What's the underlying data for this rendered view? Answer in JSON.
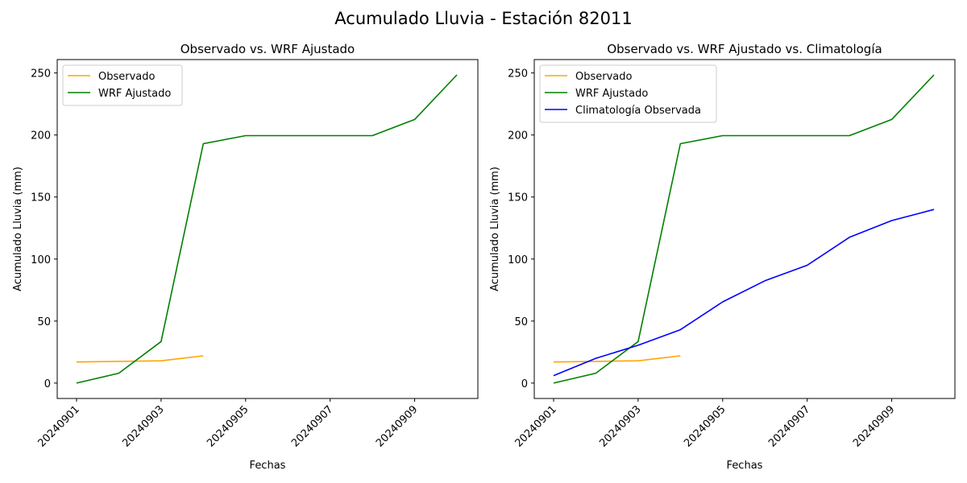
{
  "figure": {
    "suptitle": "Acumulado Lluvia - Estación 82011"
  },
  "chart_data": [
    {
      "type": "line",
      "title": "Observado vs. WRF Ajustado",
      "xlabel": "Fechas",
      "ylabel": "Acumulado Lluvia (mm)",
      "x": [
        "20240901",
        "20240902",
        "20240903",
        "20240904",
        "20240905",
        "20240906",
        "20240907",
        "20240908",
        "20240909",
        "20240910"
      ],
      "xticks": [
        "20240901",
        "20240903",
        "20240905",
        "20240907",
        "20240909"
      ],
      "yticks": [
        0,
        50,
        100,
        150,
        200,
        250
      ],
      "ylim": [
        -12.4,
        260.8
      ],
      "grid": false,
      "legend_position": "upper left",
      "series": [
        {
          "name": "Observado",
          "color": "#ffa500",
          "values": [
            17.0,
            17.5,
            18.0,
            22.0,
            null,
            null,
            null,
            null,
            null,
            null
          ]
        },
        {
          "name": "WRF Ajustado",
          "color": "#008000",
          "values": [
            0.0,
            8.0,
            33.5,
            193.0,
            199.5,
            199.5,
            199.5,
            199.5,
            212.5,
            248.5
          ]
        }
      ]
    },
    {
      "type": "line",
      "title": "Observado vs. WRF Ajustado vs. Climatología",
      "xlabel": "Fechas",
      "ylabel": "Acumulado Lluvia (mm)",
      "x": [
        "20240901",
        "20240902",
        "20240903",
        "20240904",
        "20240905",
        "20240906",
        "20240907",
        "20240908",
        "20240909",
        "20240910"
      ],
      "xticks": [
        "20240901",
        "20240903",
        "20240905",
        "20240907",
        "20240909"
      ],
      "yticks": [
        0,
        50,
        100,
        150,
        200,
        250
      ],
      "ylim": [
        -12.4,
        260.8
      ],
      "grid": false,
      "legend_position": "upper left",
      "series": [
        {
          "name": "Observado",
          "color": "#ffa500",
          "values": [
            17.0,
            17.5,
            18.0,
            22.0,
            null,
            null,
            null,
            null,
            null,
            null
          ]
        },
        {
          "name": "WRF Ajustado",
          "color": "#008000",
          "values": [
            0.0,
            8.0,
            33.5,
            193.0,
            199.5,
            199.5,
            199.5,
            199.5,
            212.5,
            248.5
          ]
        },
        {
          "name": "Climatología Observada",
          "color": "#0000ff",
          "values": [
            6.0,
            20.0,
            30.5,
            43.0,
            65.5,
            82.5,
            95.0,
            117.5,
            131.0,
            140.0
          ]
        }
      ]
    }
  ]
}
